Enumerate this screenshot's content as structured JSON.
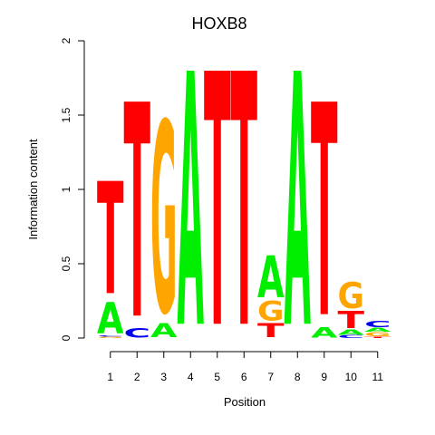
{
  "chart_data": {
    "type": "sequence-logo",
    "title": "HOXB8",
    "xlabel": "Position",
    "ylabel": "Information content",
    "ylim": [
      0,
      2
    ],
    "yticks": [
      0,
      0.5,
      1,
      1.5,
      2
    ],
    "ytick_labels": [
      "0",
      "0.5",
      "1",
      "1.5",
      "2"
    ],
    "positions": [
      "1",
      "2",
      "3",
      "4",
      "5",
      "6",
      "7",
      "8",
      "9",
      "10",
      "11"
    ],
    "colors": {
      "A": "#00ee00",
      "C": "#0000ee",
      "G": "#ffa500",
      "T": "#ff0000"
    },
    "stacks": [
      [
        {
          "letter": "G",
          "height": 0.01
        },
        {
          "letter": "C",
          "height": 0.01
        },
        {
          "letter": "A",
          "height": 0.24
        },
        {
          "letter": "T",
          "height": 0.86
        }
      ],
      [
        {
          "letter": "C",
          "height": 0.07
        },
        {
          "letter": "T",
          "height": 1.64
        }
      ],
      [
        {
          "letter": "A",
          "height": 0.11
        },
        {
          "letter": "G",
          "height": 1.46
        }
      ],
      [
        {
          "letter": "A",
          "height": 1.94
        }
      ],
      [
        {
          "letter": "T",
          "height": 1.94
        }
      ],
      [
        {
          "letter": "T",
          "height": 1.94
        }
      ],
      [
        {
          "letter": "T",
          "height": 0.11
        },
        {
          "letter": "G",
          "height": 0.15
        },
        {
          "letter": "A",
          "height": 0.32
        }
      ],
      [
        {
          "letter": "A",
          "height": 1.94
        }
      ],
      [
        {
          "letter": "A",
          "height": 0.08
        },
        {
          "letter": "T",
          "height": 1.63
        }
      ],
      [
        {
          "letter": "C",
          "height": 0.02
        },
        {
          "letter": "A",
          "height": 0.04
        },
        {
          "letter": "T",
          "height": 0.13
        },
        {
          "letter": "G",
          "height": 0.2
        }
      ],
      [
        {
          "letter": "T",
          "height": 0.01
        },
        {
          "letter": "G",
          "height": 0.03
        },
        {
          "letter": "A",
          "height": 0.03
        },
        {
          "letter": "C",
          "height": 0.05
        }
      ]
    ]
  }
}
